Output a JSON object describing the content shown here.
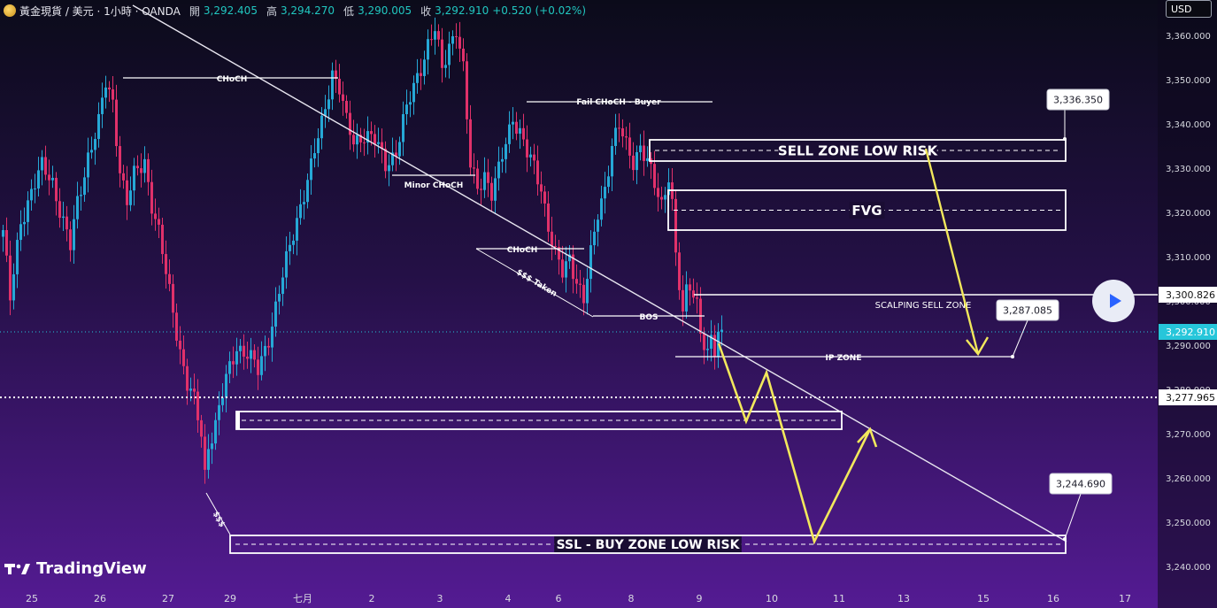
{
  "header": {
    "symbol": "黃金現貨 / 美元 · 1小時 · OANDA",
    "open_label": "開",
    "open": "3,292.405",
    "high_label": "高",
    "high": "3,294.270",
    "low_label": "低",
    "low": "3,290.005",
    "close_label": "收",
    "close": "3,292.910",
    "change": "+0.520 (+0.02%)"
  },
  "currency_button": "USD",
  "brand": "TradingView",
  "colors": {
    "background_top": "#0b0b1a",
    "background_bottom": "#521a8f",
    "bull": "#26a8d6",
    "bear": "#e0316a",
    "annotation": "#ffffff",
    "projection": "#f2e85c",
    "price_tag": "#26c6da"
  },
  "chart_data": {
    "type": "candlestick",
    "symbol": "XAUUSD",
    "timeframe": "1h",
    "ylim": [
      3236,
      3366
    ],
    "y_ticks": [
      3360,
      3350,
      3340,
      3330,
      3320,
      3310,
      3300,
      3290,
      3280,
      3270,
      3260,
      3250,
      3240
    ],
    "x_labels": [
      "25",
      "26",
      "27",
      "29",
      "七月",
      "2",
      "3",
      "4",
      "6",
      "8",
      "9",
      "10",
      "11",
      "13",
      "15",
      "16",
      "17"
    ],
    "last_price": "3,292.910",
    "price_tags": [
      "3,300.826",
      "3,277.965"
    ],
    "price_path": [
      [
        0,
        3316
      ],
      [
        2,
        3300
      ],
      [
        5,
        3318
      ],
      [
        8,
        3325
      ],
      [
        11,
        3330
      ],
      [
        14,
        3327
      ],
      [
        17,
        3318
      ],
      [
        19,
        3312
      ],
      [
        21,
        3322
      ],
      [
        24,
        3333
      ],
      [
        27,
        3340
      ],
      [
        29,
        3349
      ],
      [
        31,
        3345
      ],
      [
        33,
        3330
      ],
      [
        35,
        3322
      ],
      [
        37,
        3328
      ],
      [
        40,
        3332
      ],
      [
        42,
        3322
      ],
      [
        44,
        3315
      ],
      [
        46,
        3306
      ],
      [
        48,
        3298
      ],
      [
        50,
        3289
      ],
      [
        52,
        3281
      ],
      [
        54,
        3277
      ],
      [
        56,
        3270
      ],
      [
        57,
        3261
      ],
      [
        58,
        3268
      ],
      [
        60,
        3272
      ],
      [
        63,
        3282
      ],
      [
        66,
        3290
      ],
      [
        69,
        3288
      ],
      [
        72,
        3284
      ],
      [
        75,
        3292
      ],
      [
        78,
        3302
      ],
      [
        81,
        3312
      ],
      [
        84,
        3322
      ],
      [
        87,
        3330
      ],
      [
        90,
        3340
      ],
      [
        93,
        3352
      ],
      [
        95,
        3348
      ],
      [
        97,
        3340
      ],
      [
        99,
        3336
      ],
      [
        102,
        3338
      ],
      [
        105,
        3336
      ],
      [
        108,
        3331
      ],
      [
        111,
        3334
      ],
      [
        114,
        3343
      ],
      [
        117,
        3351
      ],
      [
        120,
        3358
      ],
      [
        122,
        3361
      ],
      [
        124,
        3352
      ],
      [
        126,
        3358
      ],
      [
        128,
        3362
      ],
      [
        130,
        3352
      ],
      [
        132,
        3330
      ],
      [
        134,
        3326
      ],
      [
        136,
        3329
      ],
      [
        138,
        3324
      ],
      [
        140,
        3329
      ],
      [
        142,
        3336
      ],
      [
        144,
        3342
      ],
      [
        146,
        3338
      ],
      [
        148,
        3333
      ],
      [
        150,
        3330
      ],
      [
        152,
        3326
      ],
      [
        154,
        3317
      ],
      [
        156,
        3310
      ],
      [
        158,
        3306
      ],
      [
        160,
        3310
      ],
      [
        162,
        3305
      ],
      [
        164,
        3300
      ],
      [
        166,
        3310
      ],
      [
        168,
        3320
      ],
      [
        170,
        3326
      ],
      [
        172,
        3335
      ],
      [
        174,
        3339
      ],
      [
        176,
        3335
      ],
      [
        178,
        3332
      ],
      [
        180,
        3335
      ],
      [
        182,
        3331
      ],
      [
        184,
        3326
      ],
      [
        186,
        3322
      ],
      [
        188,
        3329
      ],
      [
        189,
        3322
      ],
      [
        190,
        3310
      ],
      [
        191,
        3303
      ],
      [
        192,
        3296
      ],
      [
        193,
        3302
      ],
      [
        194,
        3304
      ],
      [
        196,
        3300
      ],
      [
        197,
        3294
      ],
      [
        198,
        3290
      ],
      [
        199,
        3287
      ],
      [
        200,
        3291
      ],
      [
        201,
        3288
      ],
      [
        202,
        3292
      ],
      [
        203,
        3293
      ]
    ],
    "zones": [
      {
        "label": "SELL ZONE LOW RISK",
        "top": 3336,
        "bottom": 3332
      },
      {
        "label": "FVG",
        "top": 3325,
        "bottom": 3316
      },
      {
        "label": "SSL - BUY ZONE LOW RISK",
        "top": 3247,
        "bottom": 3243
      },
      {
        "label": "",
        "top": 3275,
        "bottom": 3271
      }
    ],
    "annotations": [
      "CHoCH",
      "Fail CHoCH - Buyer",
      "Minor CHoCH",
      "CHoCH",
      "$$$ Taken",
      "BOS",
      "SCALPING SELL ZONE",
      "IP ZONE",
      "$$$"
    ],
    "callouts": [
      "3,336.350",
      "3,287.085",
      "3,244.690"
    ]
  }
}
